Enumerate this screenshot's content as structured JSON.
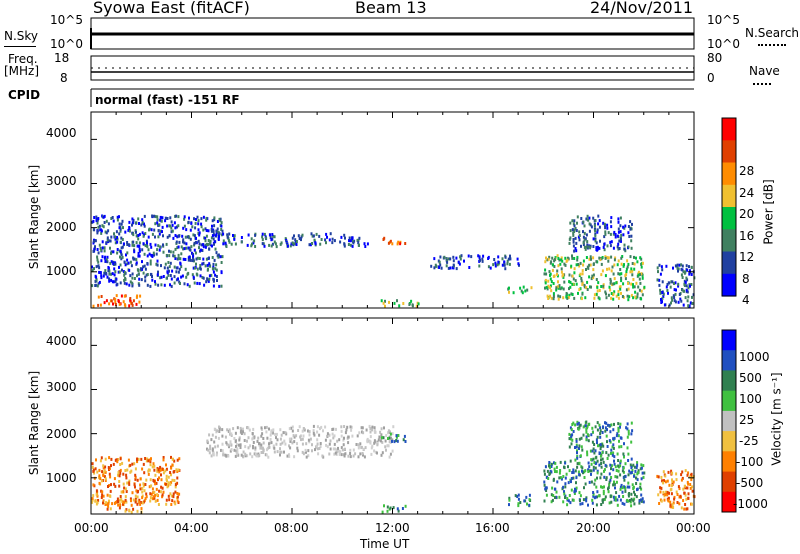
{
  "header": {
    "station": "Syowa East (fitACF)",
    "beam": "Beam 13",
    "date": "24/Nov/2011"
  },
  "top_panels": {
    "nsky_label": "N.Sky",
    "nsky_ticks": [
      "10^5",
      "10^0"
    ],
    "nsearch_label": "N.Search",
    "nsearch_ticks": [
      "10^5",
      "10^0"
    ],
    "freq_label_1": "Freq.",
    "freq_label_2": "[MHz]",
    "freq_ticks": [
      "18",
      "8"
    ],
    "nave_label": "Nave",
    "nave_ticks": [
      "80",
      "0"
    ],
    "cpid_label": "CPID",
    "cpid_text": "normal (fast) -151 RF"
  },
  "chart_data": [
    {
      "type": "heatmap",
      "name": "power",
      "ylabel": "Slant Range [km]",
      "yticks": [
        "4000",
        "3000",
        "2000",
        "1000"
      ],
      "ylim": [
        180,
        4620
      ],
      "xlim": [
        0,
        24
      ],
      "colorbar": {
        "label": "Power [dB]",
        "ticks": [
          "28",
          "24",
          "20",
          "16",
          "12",
          "8",
          "4"
        ],
        "colors": [
          "#ff0000",
          "#e04000",
          "#ff8c00",
          "#f0c030",
          "#00c040",
          "#408060",
          "#2040a0",
          "#0000ff"
        ],
        "range": [
          0,
          32
        ]
      },
      "echo_regions": [
        {
          "t": [
            0.0,
            5.2
          ],
          "r": [
            700,
            2300
          ],
          "level": "low"
        },
        {
          "t": [
            0.0,
            2.0
          ],
          "r": [
            250,
            500
          ],
          "level": "high"
        },
        {
          "t": [
            4.0,
            11.0
          ],
          "r": [
            1600,
            1900
          ],
          "level": "low"
        },
        {
          "t": [
            11.5,
            12.5
          ],
          "r": [
            1650,
            1800
          ],
          "level": "high"
        },
        {
          "t": [
            11.5,
            13.0
          ],
          "r": [
            250,
            400
          ],
          "level": "mid"
        },
        {
          "t": [
            13.5,
            17.0
          ],
          "r": [
            1100,
            1400
          ],
          "level": "low"
        },
        {
          "t": [
            16.5,
            17.5
          ],
          "r": [
            550,
            700
          ],
          "level": "mid"
        },
        {
          "t": [
            18.0,
            22.0
          ],
          "r": [
            400,
            1400
          ],
          "level": "mid"
        },
        {
          "t": [
            19.0,
            21.5
          ],
          "r": [
            1500,
            2300
          ],
          "level": "low"
        },
        {
          "t": [
            22.5,
            24.0
          ],
          "r": [
            250,
            1200
          ],
          "level": "low"
        }
      ]
    },
    {
      "type": "heatmap",
      "name": "velocity",
      "ylabel": "Slant Range [km]",
      "yticks": [
        "4000",
        "3000",
        "2000",
        "1000"
      ],
      "ylim": [
        180,
        4620
      ],
      "xlim": [
        0,
        24
      ],
      "colorbar": {
        "label": "Velocity [m s⁻¹]",
        "ticks": [
          "1000",
          "500",
          "100",
          "25",
          "-25",
          "-100",
          "-500",
          "-1000"
        ],
        "colors": [
          "#0000ff",
          "#2050c0",
          "#308050",
          "#40c040",
          "#c0c0c0",
          "#f0c040",
          "#ff8000",
          "#e04000",
          "#ff0000"
        ]
      },
      "echo_regions": [
        {
          "t": [
            0.0,
            3.5
          ],
          "r": [
            400,
            1500
          ],
          "level": "neg"
        },
        {
          "t": [
            0.5,
            2.0
          ],
          "r": [
            250,
            500
          ],
          "level": "neg"
        },
        {
          "t": [
            4.5,
            12.0
          ],
          "r": [
            1500,
            2200
          ],
          "level": "zero"
        },
        {
          "t": [
            11.5,
            12.5
          ],
          "r": [
            1850,
            2050
          ],
          "level": "pos"
        },
        {
          "t": [
            11.5,
            12.5
          ],
          "r": [
            250,
            400
          ],
          "level": "pos"
        },
        {
          "t": [
            16.5,
            17.5
          ],
          "r": [
            400,
            650
          ],
          "level": "pos"
        },
        {
          "t": [
            18.0,
            22.0
          ],
          "r": [
            400,
            1400
          ],
          "level": "pos"
        },
        {
          "t": [
            19.0,
            21.5
          ],
          "r": [
            1400,
            2300
          ],
          "level": "pos"
        },
        {
          "t": [
            22.5,
            24.0
          ],
          "r": [
            300,
            1200
          ],
          "level": "neg"
        }
      ]
    }
  ],
  "time_axis": {
    "ticks": [
      "00:00",
      "04:00",
      "08:00",
      "12:00",
      "16:00",
      "20:00",
      "00:00"
    ],
    "label": "Time UT"
  }
}
